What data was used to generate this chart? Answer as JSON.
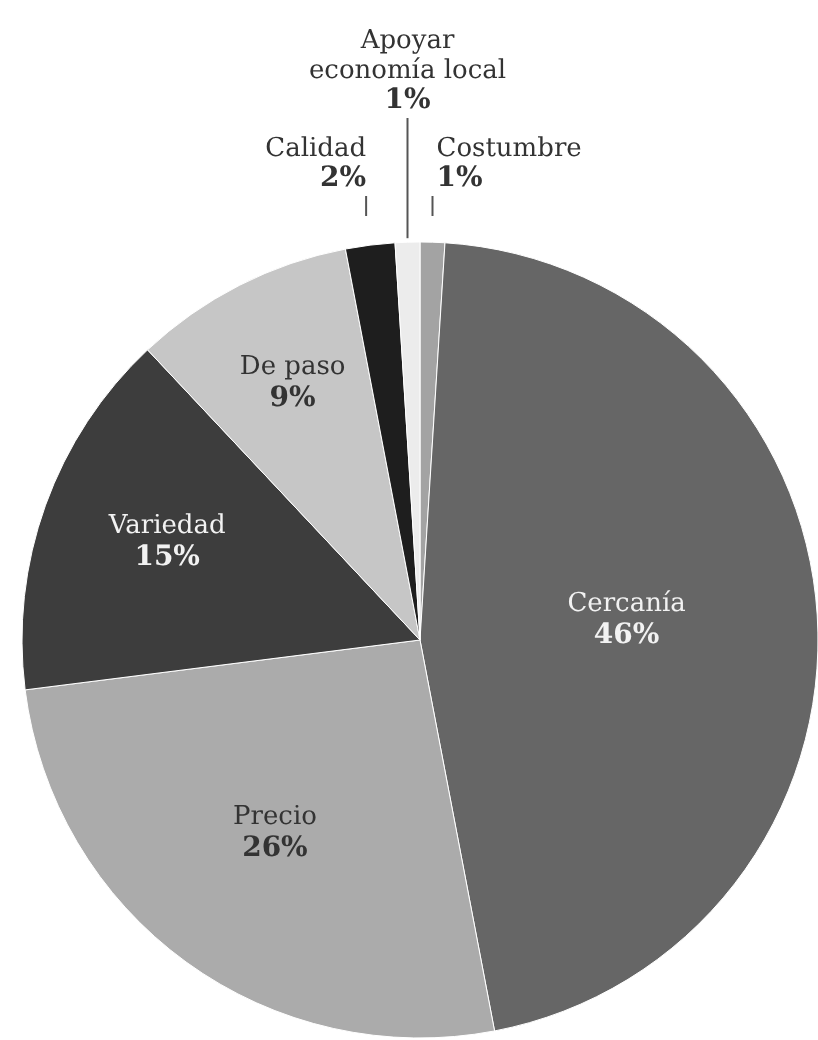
{
  "chart_data": {
    "type": "pie",
    "categories": [
      "Costumbre",
      "Cercanía",
      "Precio",
      "Variedad",
      "De paso",
      "Calidad",
      "Apoyar\neconomía local"
    ],
    "values": [
      1,
      46,
      26,
      15,
      9,
      2,
      1
    ],
    "colors": [
      "#a3a3a3",
      "#666666",
      "#ababab",
      "#3d3d3d",
      "#c6c6c6",
      "#1e1e1e",
      "#ececec"
    ],
    "value_labels": [
      "1%",
      "46%",
      "26%",
      "15%",
      "9%",
      "2%",
      "1%"
    ],
    "legend": false
  }
}
